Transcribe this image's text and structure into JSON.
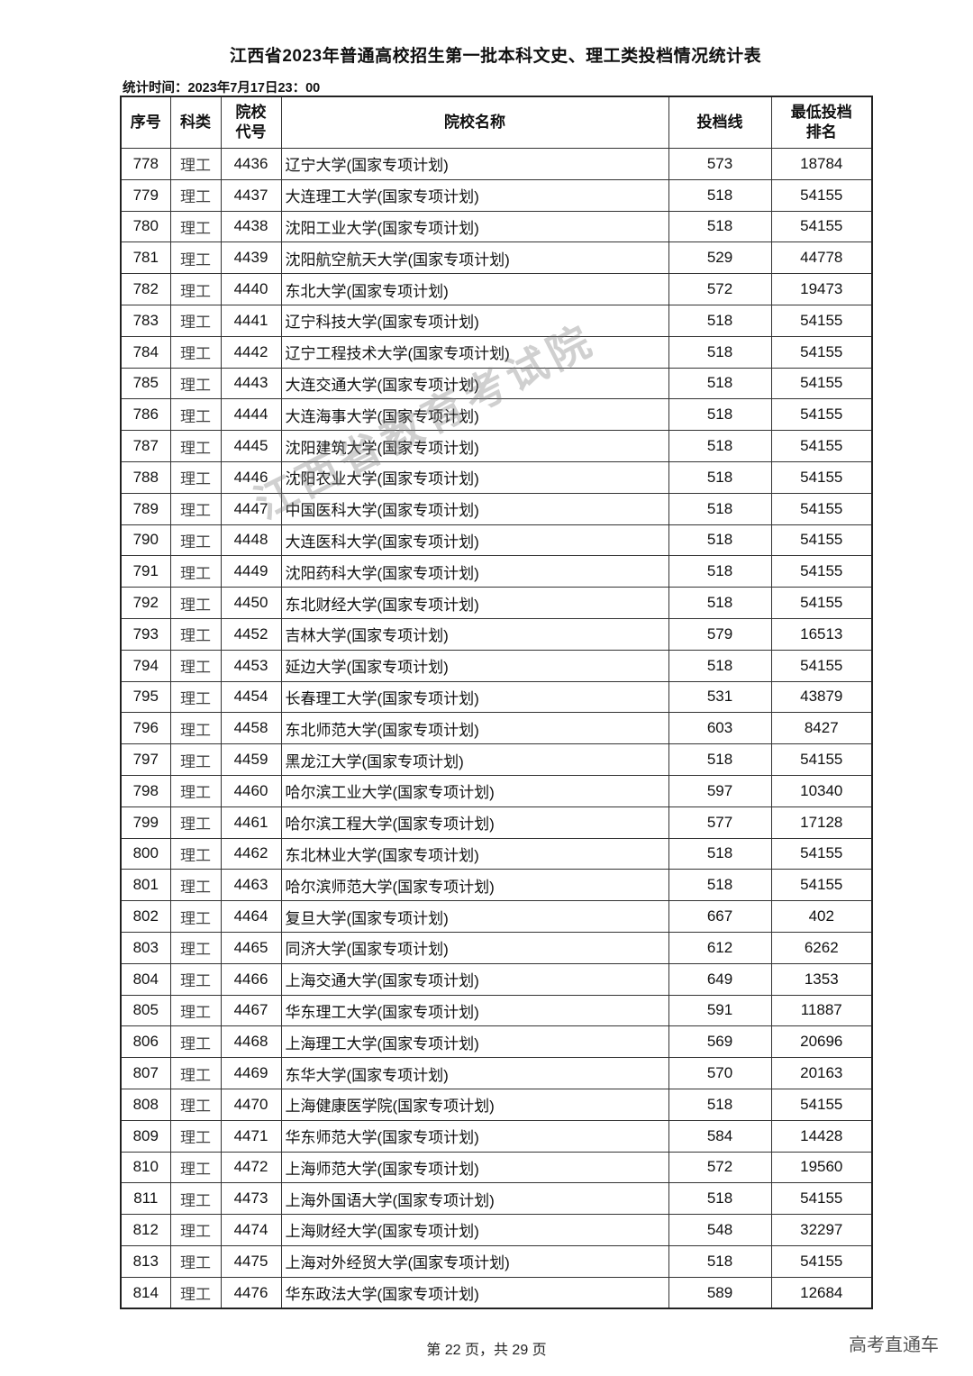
{
  "title": "江西省2023年普通高校招生第一批本科文史、理工类投档情况统计表",
  "stat_time": "统计时间：2023年7月17日23：00",
  "headers": [
    "序号",
    "科类",
    "院校代号",
    "院校名称",
    "投档线",
    "最低投档排名"
  ],
  "rows": [
    [
      "778",
      "理工",
      "4436",
      "辽宁大学(国家专项计划)",
      "573",
      "18784"
    ],
    [
      "779",
      "理工",
      "4437",
      "大连理工大学(国家专项计划)",
      "518",
      "54155"
    ],
    [
      "780",
      "理工",
      "4438",
      "沈阳工业大学(国家专项计划)",
      "518",
      "54155"
    ],
    [
      "781",
      "理工",
      "4439",
      "沈阳航空航天大学(国家专项计划)",
      "529",
      "44778"
    ],
    [
      "782",
      "理工",
      "4440",
      "东北大学(国家专项计划)",
      "572",
      "19473"
    ],
    [
      "783",
      "理工",
      "4441",
      "辽宁科技大学(国家专项计划)",
      "518",
      "54155"
    ],
    [
      "784",
      "理工",
      "4442",
      "辽宁工程技术大学(国家专项计划)",
      "518",
      "54155"
    ],
    [
      "785",
      "理工",
      "4443",
      "大连交通大学(国家专项计划)",
      "518",
      "54155"
    ],
    [
      "786",
      "理工",
      "4444",
      "大连海事大学(国家专项计划)",
      "518",
      "54155"
    ],
    [
      "787",
      "理工",
      "4445",
      "沈阳建筑大学(国家专项计划)",
      "518",
      "54155"
    ],
    [
      "788",
      "理工",
      "4446",
      "沈阳农业大学(国家专项计划)",
      "518",
      "54155"
    ],
    [
      "789",
      "理工",
      "4447",
      "中国医科大学(国家专项计划)",
      "518",
      "54155"
    ],
    [
      "790",
      "理工",
      "4448",
      "大连医科大学(国家专项计划)",
      "518",
      "54155"
    ],
    [
      "791",
      "理工",
      "4449",
      "沈阳药科大学(国家专项计划)",
      "518",
      "54155"
    ],
    [
      "792",
      "理工",
      "4450",
      "东北财经大学(国家专项计划)",
      "518",
      "54155"
    ],
    [
      "793",
      "理工",
      "4452",
      "吉林大学(国家专项计划)",
      "579",
      "16513"
    ],
    [
      "794",
      "理工",
      "4453",
      "延边大学(国家专项计划)",
      "518",
      "54155"
    ],
    [
      "795",
      "理工",
      "4454",
      "长春理工大学(国家专项计划)",
      "531",
      "43879"
    ],
    [
      "796",
      "理工",
      "4458",
      "东北师范大学(国家专项计划)",
      "603",
      "8427"
    ],
    [
      "797",
      "理工",
      "4459",
      "黑龙江大学(国家专项计划)",
      "518",
      "54155"
    ],
    [
      "798",
      "理工",
      "4460",
      "哈尔滨工业大学(国家专项计划)",
      "597",
      "10340"
    ],
    [
      "799",
      "理工",
      "4461",
      "哈尔滨工程大学(国家专项计划)",
      "577",
      "17128"
    ],
    [
      "800",
      "理工",
      "4462",
      "东北林业大学(国家专项计划)",
      "518",
      "54155"
    ],
    [
      "801",
      "理工",
      "4463",
      "哈尔滨师范大学(国家专项计划)",
      "518",
      "54155"
    ],
    [
      "802",
      "理工",
      "4464",
      "复旦大学(国家专项计划)",
      "667",
      "402"
    ],
    [
      "803",
      "理工",
      "4465",
      "同济大学(国家专项计划)",
      "612",
      "6262"
    ],
    [
      "804",
      "理工",
      "4466",
      "上海交通大学(国家专项计划)",
      "649",
      "1353"
    ],
    [
      "805",
      "理工",
      "4467",
      "华东理工大学(国家专项计划)",
      "591",
      "11887"
    ],
    [
      "806",
      "理工",
      "4468",
      "上海理工大学(国家专项计划)",
      "569",
      "20696"
    ],
    [
      "807",
      "理工",
      "4469",
      "东华大学(国家专项计划)",
      "570",
      "20163"
    ],
    [
      "808",
      "理工",
      "4470",
      "上海健康医学院(国家专项计划)",
      "518",
      "54155"
    ],
    [
      "809",
      "理工",
      "4471",
      "华东师范大学(国家专项计划)",
      "584",
      "14428"
    ],
    [
      "810",
      "理工",
      "4472",
      "上海师范大学(国家专项计划)",
      "572",
      "19560"
    ],
    [
      "811",
      "理工",
      "4473",
      "上海外国语大学(国家专项计划)",
      "518",
      "54155"
    ],
    [
      "812",
      "理工",
      "4474",
      "上海财经大学(国家专项计划)",
      "548",
      "32297"
    ],
    [
      "813",
      "理工",
      "4475",
      "上海对外经贸大学(国家专项计划)",
      "518",
      "54155"
    ],
    [
      "814",
      "理工",
      "4476",
      "华东政法大学(国家专项计划)",
      "589",
      "12684"
    ]
  ],
  "footer": "第 22 页，共 29 页",
  "watermark": "江西省教育考试院",
  "brand": "高考直通车"
}
